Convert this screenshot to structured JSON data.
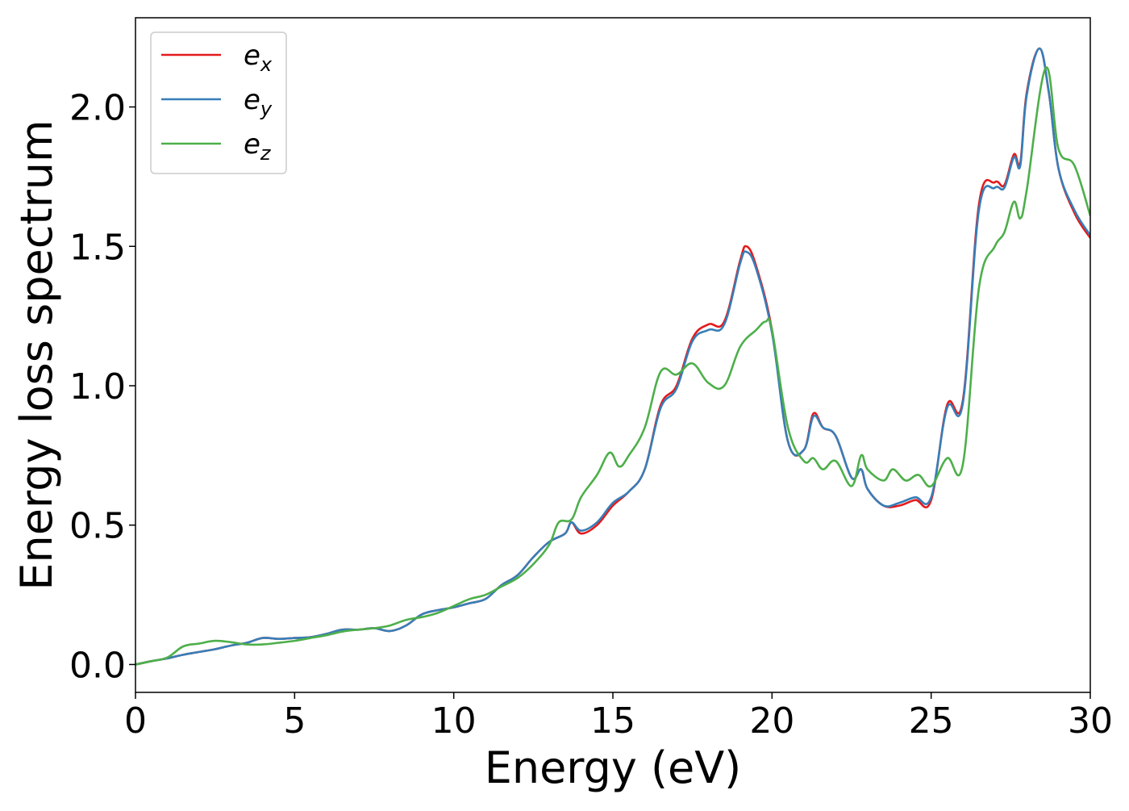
{
  "chart_data": {
    "type": "line",
    "title": "",
    "xlabel": "Energy (eV)",
    "ylabel": "Energy loss spectrum",
    "xlim": [
      0,
      30
    ],
    "ylim": [
      -0.1,
      2.32
    ],
    "xticks": [
      0,
      5,
      10,
      15,
      20,
      25,
      30
    ],
    "xtick_labels": [
      "0",
      "5",
      "10",
      "15",
      "20",
      "25",
      "30"
    ],
    "yticks": [
      0.0,
      0.5,
      1.0,
      1.5,
      2.0
    ],
    "ytick_labels": [
      "0.0",
      "0.5",
      "1.0",
      "1.5",
      "2.0"
    ],
    "grid": false,
    "legend_position": "top-left",
    "series": [
      {
        "name": "e_x",
        "label_base": "e",
        "label_sub": "x",
        "color": "#e41a1c",
        "points": [
          [
            0,
            0.0
          ],
          [
            0.5,
            0.012
          ],
          [
            1,
            0.022
          ],
          [
            1.5,
            0.035
          ],
          [
            2,
            0.045
          ],
          [
            2.5,
            0.055
          ],
          [
            3,
            0.068
          ],
          [
            3.5,
            0.078
          ],
          [
            4,
            0.095
          ],
          [
            4.5,
            0.092
          ],
          [
            5,
            0.095
          ],
          [
            5.5,
            0.098
          ],
          [
            6,
            0.11
          ],
          [
            6.5,
            0.125
          ],
          [
            7,
            0.125
          ],
          [
            7.5,
            0.13
          ],
          [
            8,
            0.12
          ],
          [
            8.5,
            0.14
          ],
          [
            9,
            0.18
          ],
          [
            9.5,
            0.195
          ],
          [
            10,
            0.205
          ],
          [
            10.5,
            0.22
          ],
          [
            11,
            0.235
          ],
          [
            11.5,
            0.285
          ],
          [
            12,
            0.32
          ],
          [
            12.5,
            0.385
          ],
          [
            13,
            0.44
          ],
          [
            13.5,
            0.47
          ],
          [
            13.7,
            0.51
          ],
          [
            14,
            0.47
          ],
          [
            14.5,
            0.5
          ],
          [
            15,
            0.57
          ],
          [
            15.5,
            0.62
          ],
          [
            16,
            0.7
          ],
          [
            16.5,
            0.93
          ],
          [
            17,
            1.0
          ],
          [
            17.5,
            1.17
          ],
          [
            18,
            1.22
          ],
          [
            18.5,
            1.23
          ],
          [
            19,
            1.45
          ],
          [
            19.2,
            1.5
          ],
          [
            19.5,
            1.43
          ],
          [
            20,
            1.2
          ],
          [
            20.5,
            0.8
          ],
          [
            21,
            0.77
          ],
          [
            21.3,
            0.9
          ],
          [
            21.6,
            0.85
          ],
          [
            22,
            0.82
          ],
          [
            22.5,
            0.67
          ],
          [
            22.8,
            0.7
          ],
          [
            23,
            0.63
          ],
          [
            23.5,
            0.57
          ],
          [
            24,
            0.57
          ],
          [
            24.5,
            0.59
          ],
          [
            25,
            0.59
          ],
          [
            25.5,
            0.93
          ],
          [
            26,
            0.95
          ],
          [
            26.5,
            1.65
          ],
          [
            27,
            1.73
          ],
          [
            27.3,
            1.72
          ],
          [
            27.6,
            1.83
          ],
          [
            27.8,
            1.8
          ],
          [
            28,
            2.05
          ],
          [
            28.4,
            2.21
          ],
          [
            28.7,
            2.05
          ],
          [
            29,
            1.78
          ],
          [
            29.5,
            1.62
          ],
          [
            30,
            1.53
          ]
        ]
      },
      {
        "name": "e_y",
        "label_base": "e",
        "label_sub": "y",
        "color": "#377eb8",
        "points": [
          [
            0,
            0.0
          ],
          [
            0.5,
            0.012
          ],
          [
            1,
            0.022
          ],
          [
            1.5,
            0.035
          ],
          [
            2,
            0.045
          ],
          [
            2.5,
            0.055
          ],
          [
            3,
            0.068
          ],
          [
            3.5,
            0.078
          ],
          [
            4,
            0.095
          ],
          [
            4.5,
            0.092
          ],
          [
            5,
            0.095
          ],
          [
            5.5,
            0.098
          ],
          [
            6,
            0.11
          ],
          [
            6.5,
            0.125
          ],
          [
            7,
            0.125
          ],
          [
            7.5,
            0.13
          ],
          [
            8,
            0.12
          ],
          [
            8.5,
            0.14
          ],
          [
            9,
            0.18
          ],
          [
            9.5,
            0.195
          ],
          [
            10,
            0.205
          ],
          [
            10.5,
            0.22
          ],
          [
            11,
            0.235
          ],
          [
            11.5,
            0.285
          ],
          [
            12,
            0.32
          ],
          [
            12.5,
            0.385
          ],
          [
            13,
            0.44
          ],
          [
            13.5,
            0.47
          ],
          [
            13.7,
            0.51
          ],
          [
            14,
            0.48
          ],
          [
            14.5,
            0.51
          ],
          [
            15,
            0.58
          ],
          [
            15.5,
            0.62
          ],
          [
            16,
            0.7
          ],
          [
            16.5,
            0.92
          ],
          [
            17,
            0.99
          ],
          [
            17.5,
            1.16
          ],
          [
            18,
            1.2
          ],
          [
            18.5,
            1.22
          ],
          [
            19,
            1.44
          ],
          [
            19.2,
            1.48
          ],
          [
            19.5,
            1.42
          ],
          [
            20,
            1.19
          ],
          [
            20.5,
            0.8
          ],
          [
            21,
            0.77
          ],
          [
            21.3,
            0.89
          ],
          [
            21.6,
            0.85
          ],
          [
            22,
            0.82
          ],
          [
            22.5,
            0.67
          ],
          [
            22.8,
            0.7
          ],
          [
            23,
            0.63
          ],
          [
            23.5,
            0.57
          ],
          [
            24,
            0.58
          ],
          [
            24.5,
            0.6
          ],
          [
            25,
            0.6
          ],
          [
            25.5,
            0.92
          ],
          [
            26,
            0.94
          ],
          [
            26.5,
            1.63
          ],
          [
            27,
            1.71
          ],
          [
            27.3,
            1.71
          ],
          [
            27.6,
            1.82
          ],
          [
            27.8,
            1.79
          ],
          [
            28,
            2.04
          ],
          [
            28.4,
            2.21
          ],
          [
            28.7,
            2.05
          ],
          [
            29,
            1.78
          ],
          [
            29.5,
            1.63
          ],
          [
            30,
            1.54
          ]
        ]
      },
      {
        "name": "e_z",
        "label_base": "e",
        "label_sub": "z",
        "color": "#4daf4a",
        "points": [
          [
            0,
            0.0
          ],
          [
            0.5,
            0.012
          ],
          [
            1,
            0.025
          ],
          [
            1.5,
            0.065
          ],
          [
            2,
            0.075
          ],
          [
            2.5,
            0.085
          ],
          [
            3,
            0.08
          ],
          [
            3.5,
            0.072
          ],
          [
            4,
            0.072
          ],
          [
            4.5,
            0.078
          ],
          [
            5,
            0.085
          ],
          [
            5.5,
            0.095
          ],
          [
            6,
            0.105
          ],
          [
            6.5,
            0.118
          ],
          [
            7,
            0.125
          ],
          [
            7.5,
            0.13
          ],
          [
            8,
            0.14
          ],
          [
            8.5,
            0.16
          ],
          [
            9,
            0.17
          ],
          [
            9.5,
            0.185
          ],
          [
            10,
            0.21
          ],
          [
            10.5,
            0.235
          ],
          [
            11,
            0.25
          ],
          [
            11.5,
            0.28
          ],
          [
            12,
            0.31
          ],
          [
            12.5,
            0.36
          ],
          [
            13,
            0.43
          ],
          [
            13.3,
            0.51
          ],
          [
            13.7,
            0.52
          ],
          [
            14,
            0.6
          ],
          [
            14.5,
            0.68
          ],
          [
            14.9,
            0.76
          ],
          [
            15.2,
            0.71
          ],
          [
            15.5,
            0.75
          ],
          [
            16,
            0.85
          ],
          [
            16.5,
            1.05
          ],
          [
            17,
            1.04
          ],
          [
            17.5,
            1.08
          ],
          [
            18,
            1.01
          ],
          [
            18.5,
            1.0
          ],
          [
            19,
            1.14
          ],
          [
            19.5,
            1.2
          ],
          [
            19.8,
            1.23
          ],
          [
            20,
            1.2
          ],
          [
            20.5,
            0.85
          ],
          [
            21,
            0.73
          ],
          [
            21.3,
            0.74
          ],
          [
            21.6,
            0.7
          ],
          [
            22,
            0.73
          ],
          [
            22.5,
            0.64
          ],
          [
            22.8,
            0.75
          ],
          [
            23,
            0.7
          ],
          [
            23.5,
            0.66
          ],
          [
            23.8,
            0.7
          ],
          [
            24.2,
            0.66
          ],
          [
            24.6,
            0.68
          ],
          [
            25,
            0.64
          ],
          [
            25.5,
            0.74
          ],
          [
            26,
            0.72
          ],
          [
            26.5,
            1.35
          ],
          [
            27,
            1.5
          ],
          [
            27.3,
            1.55
          ],
          [
            27.6,
            1.66
          ],
          [
            27.8,
            1.6
          ],
          [
            28,
            1.7
          ],
          [
            28.6,
            2.14
          ],
          [
            29,
            1.85
          ],
          [
            29.5,
            1.79
          ],
          [
            30,
            1.61
          ]
        ]
      }
    ]
  }
}
